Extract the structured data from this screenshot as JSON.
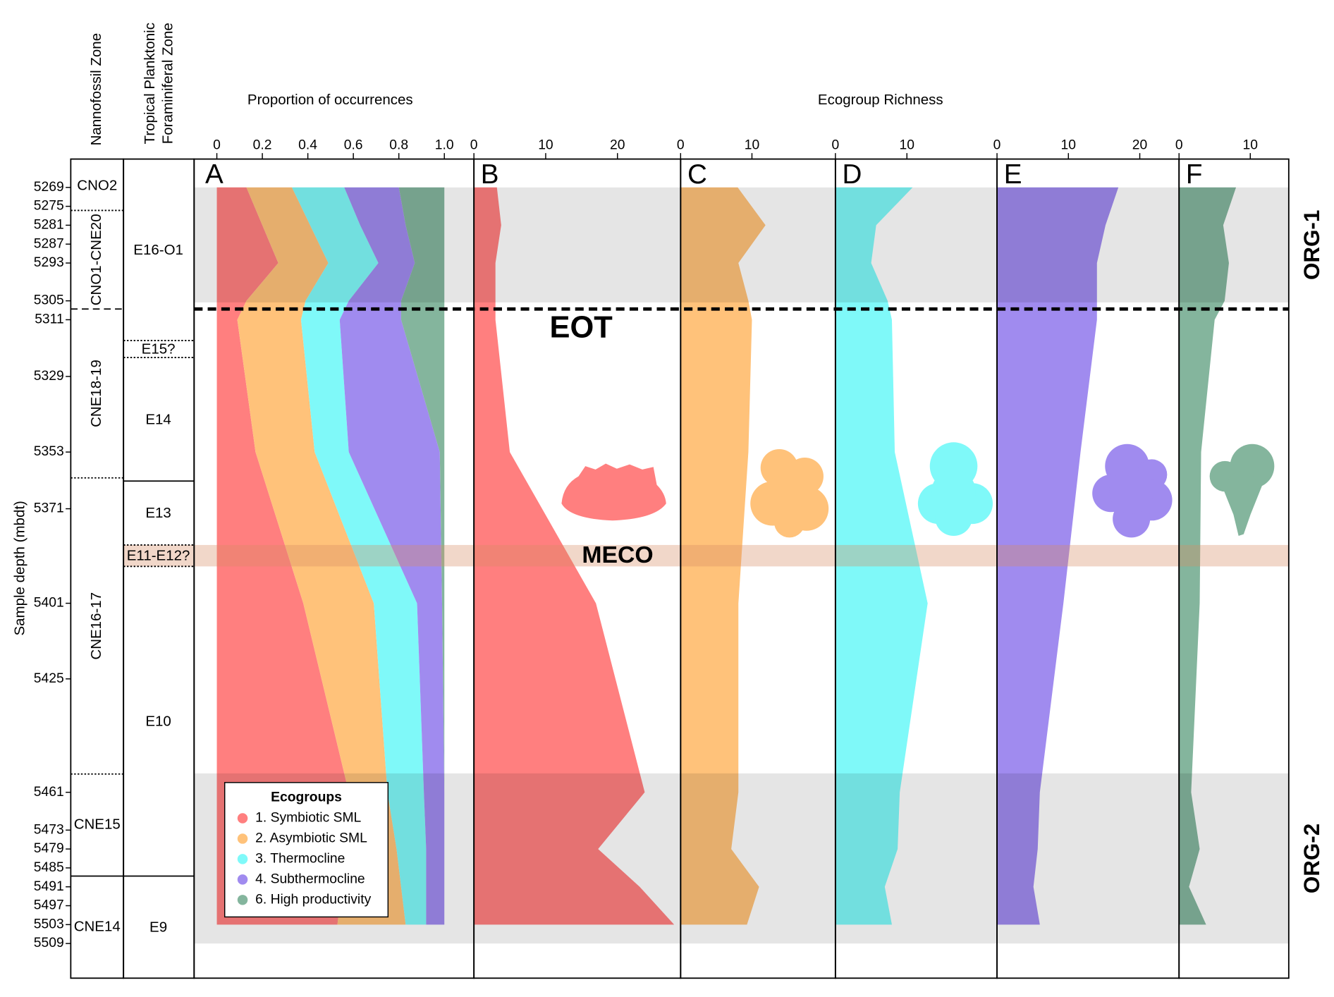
{
  "chart_data": {
    "type": "stratigraphic",
    "ylabel": "Sample depth (mbdt)",
    "ylim": [
      5260,
      5520
    ],
    "yticks": [
      5269,
      5275,
      5281,
      5287,
      5293,
      5305,
      5311,
      5329,
      5353,
      5371,
      5401,
      5425,
      5461,
      5473,
      5479,
      5485,
      5491,
      5497,
      5503,
      5509
    ],
    "depths": [
      5269,
      5281,
      5293,
      5305,
      5311,
      5353,
      5401,
      5461,
      5479,
      5491,
      5503
    ],
    "nanno_title": "Nannofossil Zone",
    "plank_title": [
      "Tropical Planktonic",
      "Foraminiferal Zone"
    ],
    "nanno_zones": [
      {
        "name": "CNO2",
        "top": 5260,
        "base": 5276.3,
        "style": "dotted",
        "vertical": false
      },
      {
        "name": "CNO1-CNE20",
        "top": 5276.3,
        "base": 5307.6,
        "style": "dashed",
        "vertical": true
      },
      {
        "name": "CNE18-19",
        "top": 5307.6,
        "base": 5361.2,
        "style": "dotted",
        "vertical": true
      },
      {
        "name": "CNE16-17",
        "top": 5361.2,
        "base": 5455.2,
        "style": "dotted",
        "vertical": true
      },
      {
        "name": "CNE15",
        "top": 5455.2,
        "base": 5487.6,
        "style": "solid",
        "vertical": false
      },
      {
        "name": "CNE14",
        "top": 5487.6,
        "base": 5520,
        "style": "solid",
        "vertical": false
      }
    ],
    "plank_zones": [
      {
        "name": "E16-O1",
        "top": 5260,
        "base": 5317.6,
        "style": "dotted"
      },
      {
        "name": "E15?",
        "top": 5317.6,
        "base": 5323,
        "style": "dotted"
      },
      {
        "name": "E14",
        "top": 5323,
        "base": 5362.2,
        "style": "solid"
      },
      {
        "name": "E13",
        "top": 5362.2,
        "base": 5382.5,
        "style": "dotted"
      },
      {
        "name": "E11-E12?",
        "top": 5382.5,
        "base": 5389.3,
        "style": "dotted"
      },
      {
        "name": "E10",
        "top": 5389.3,
        "base": 5487.6,
        "style": "solid"
      },
      {
        "name": "E9",
        "top": 5487.6,
        "base": 5520,
        "style": "solid"
      }
    ],
    "proportion": {
      "title": "Proportion of occurrences",
      "panel": "A",
      "xlim": [
        -0.1,
        1.13
      ],
      "xticks": [
        0,
        0.2,
        0.4,
        0.6,
        0.8,
        {
          "value": 1,
          "label": "1.0"
        }
      ],
      "series": [
        {
          "name": "1. Symbiotic SML",
          "color": "#ff7f7f",
          "values": [
            0.13,
            0.2,
            0.27,
            0.13,
            0.09,
            0.17,
            0.38,
            0.58,
            0.56,
            0.55,
            0.53
          ]
        },
        {
          "name": "2. Asymbiotic SML",
          "color": "#ffc27a",
          "values": [
            0.2,
            0.21,
            0.22,
            0.26,
            0.28,
            0.26,
            0.31,
            0.17,
            0.23,
            0.26,
            0.3
          ]
        },
        {
          "name": "3. Thermocline",
          "color": "#7ff9f9",
          "values": [
            0.23,
            0.22,
            0.22,
            0.19,
            0.17,
            0.15,
            0.19,
            0.16,
            0.13,
            0.11,
            0.09
          ]
        },
        {
          "name": "4. Subthermocline",
          "color": "#a08bef",
          "values": [
            0.24,
            0.2,
            0.16,
            0.23,
            0.27,
            0.4,
            0.11,
            0.09,
            0.08,
            0.08,
            0.08
          ]
        },
        {
          "name": "6. High productivity",
          "color": "#84b59d",
          "values": [
            0.2,
            0.17,
            0.13,
            0.19,
            0.19,
            0.02,
            0.01,
            0,
            0,
            0,
            0
          ]
        }
      ]
    },
    "legend_title": "Ecogroups",
    "richness_title": "Ecogroup Richness",
    "richness": [
      {
        "panel": "B",
        "color": "#ff7f7f",
        "xlim": [
          0,
          28.8
        ],
        "xticks": [
          0,
          10,
          20
        ],
        "values": [
          3.2,
          3.8,
          3,
          3,
          3,
          5,
          17,
          23.8,
          17.3,
          23.1,
          27.9
        ]
      },
      {
        "panel": "C",
        "color": "#ffc27a",
        "xlim": [
          0,
          21.7
        ],
        "xticks": [
          0,
          10
        ],
        "values": [
          8,
          11.9,
          8.1,
          9.5,
          10,
          9.5,
          8.1,
          8.1,
          7.1,
          11,
          9.3
        ]
      },
      {
        "panel": "D",
        "color": "#7ff9f9",
        "xlim": [
          0,
          22.6
        ],
        "xticks": [
          0,
          10
        ],
        "values": [
          10.8,
          5.7,
          5,
          7.3,
          7.9,
          8.3,
          12.9,
          9,
          8.7,
          6.9,
          7.9
        ]
      },
      {
        "panel": "E",
        "color": "#a08bef",
        "xlim": [
          0,
          25.5
        ],
        "xticks": [
          0,
          10,
          20
        ],
        "values": [
          17,
          15.2,
          14,
          14,
          14,
          11.7,
          9.3,
          6,
          5.7,
          5.1,
          6
        ]
      },
      {
        "panel": "F",
        "color": "#84b59d",
        "xlim": [
          0,
          15.4
        ],
        "xticks": [
          0,
          10
        ],
        "values": [
          8,
          6.2,
          7,
          6.4,
          5,
          3.1,
          2.9,
          1.7,
          2.9,
          1.4,
          3.8
        ]
      }
    ],
    "eot": {
      "label": "EOT",
      "depth": 5307.6
    },
    "meco": {
      "label": "MECO",
      "top": 5382.5,
      "base": 5389.3
    },
    "intervals": [
      {
        "label": "ORG-1",
        "top": 5269,
        "base": 5305.5
      },
      {
        "label": "ORG-2",
        "top": 5455,
        "base": 5509
      }
    ]
  }
}
